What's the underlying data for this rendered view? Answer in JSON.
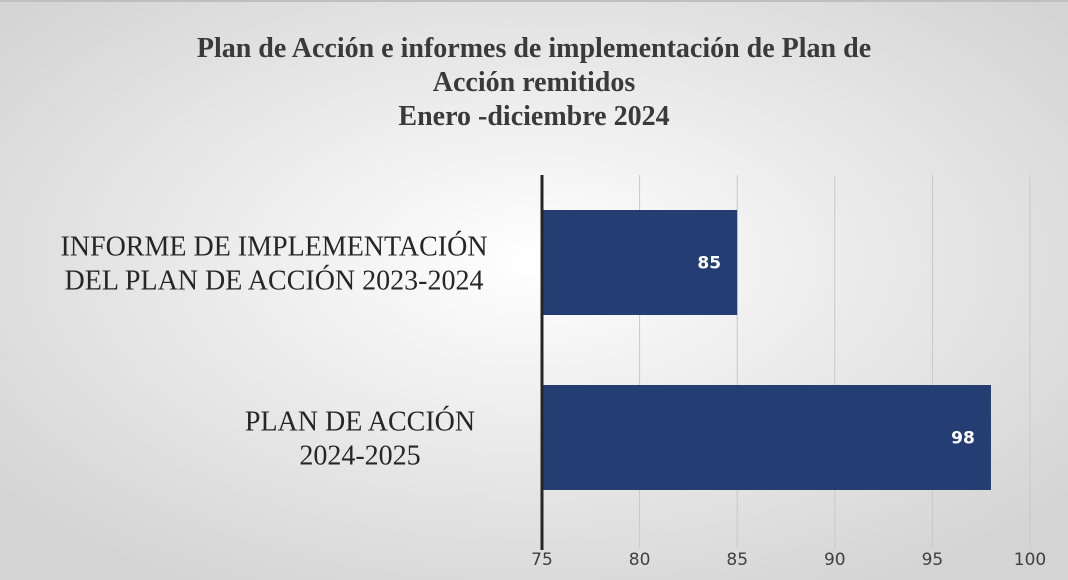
{
  "chart_data": {
    "type": "hbar",
    "title": [
      "Plan de Acción e informes de implementación de Plan de",
      "Acción remitidos",
      "Enero -diciembre 2024"
    ],
    "categories": [
      [
        "INFORME DE IMPLEMENTACIÓN",
        "DEL PLAN DE ACCIÓN 2023-2024"
      ],
      [
        "PLAN DE ACCIÓN",
        "2024-2025"
      ]
    ],
    "values": [
      85,
      98
    ],
    "color": "#243d73",
    "xlim": [
      75,
      100
    ],
    "xticks": [
      75,
      80,
      85,
      90,
      95,
      100
    ],
    "grid": true
  }
}
